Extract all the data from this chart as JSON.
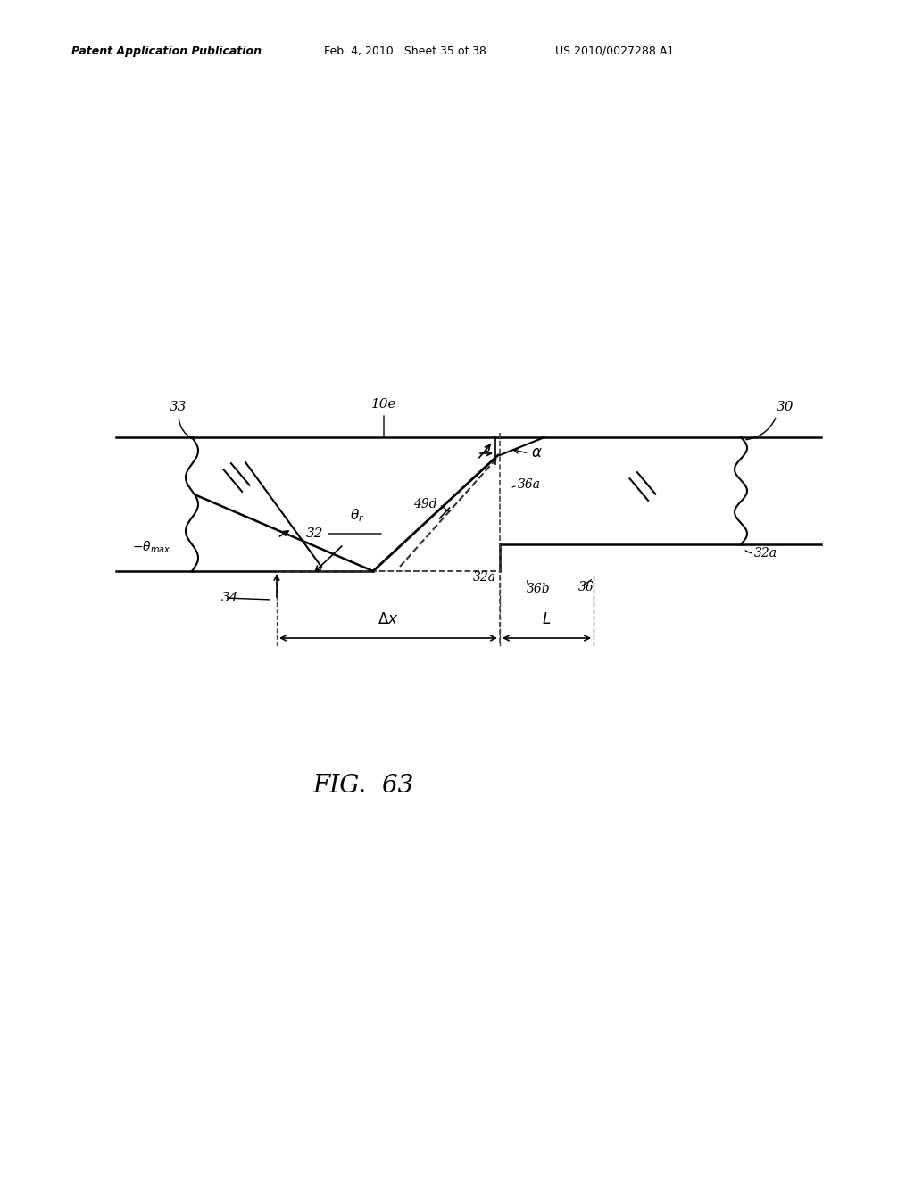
{
  "bg_color": "#ffffff",
  "text_color": "#000000",
  "header_left": "Patent Application Publication",
  "header_mid": "Feb. 4, 2010   Sheet 35 of 38",
  "header_right": "US 2010/0027288 A1",
  "fig_label": "FIG.  63"
}
